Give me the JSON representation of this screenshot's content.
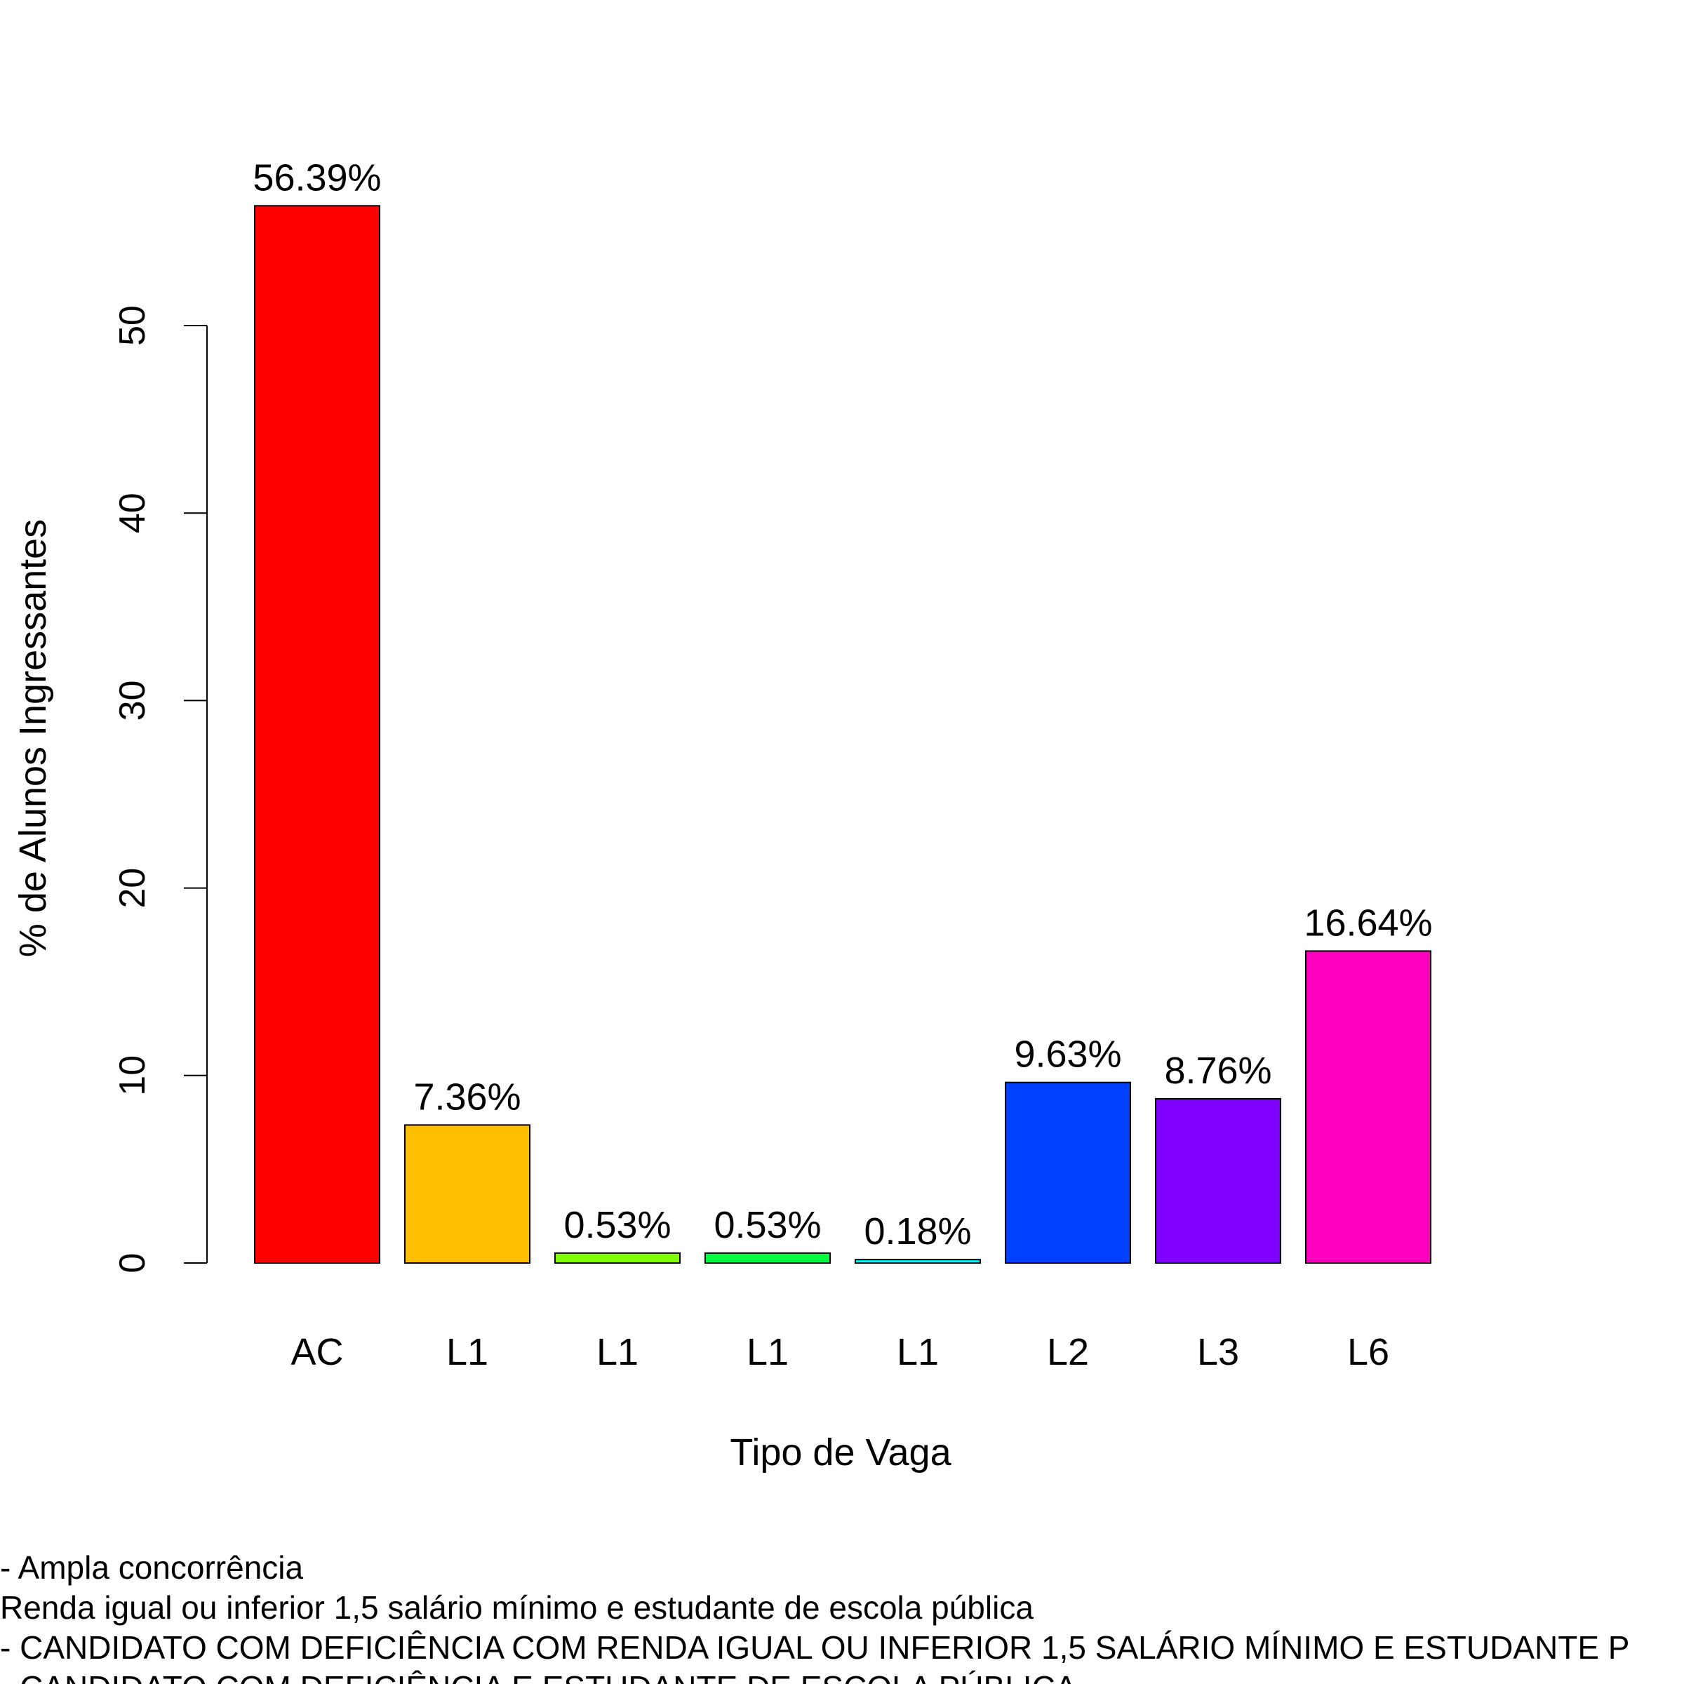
{
  "chart_data": {
    "type": "bar",
    "xlabel": "Tipo de Vaga",
    "ylabel": "% de Alunos Ingressantes",
    "ylim": [
      0,
      60
    ],
    "yticks": [
      0,
      10,
      20,
      30,
      40,
      50
    ],
    "ytick_labels": [
      "0",
      "10",
      "20",
      "30",
      "40",
      "50"
    ],
    "grid": false,
    "categories": [
      "AC",
      "L1",
      "L1",
      "L1",
      "L1",
      "L2",
      "L3",
      "L6"
    ],
    "values": [
      56.39,
      7.36,
      0.53,
      0.53,
      0.18,
      9.63,
      8.76,
      16.64
    ],
    "value_labels": [
      "56.39%",
      "7.36%",
      "0.53%",
      "0.53%",
      "0.18%",
      "9.63%",
      "8.76%",
      "16.64%"
    ],
    "colors": [
      "#FF0000",
      "#FFBF00",
      "#80FF00",
      "#00FF40",
      "#00FFFF",
      "#0040FF",
      "#8000FF",
      "#FF00BF"
    ],
    "legend_lines": [
      "- Ampla concorrência",
      " Renda igual ou inferior 1,5 salário mínimo e estudante de escola pública",
      " - CANDIDATO COM DEFICIÊNCIA COM RENDA IGUAL OU INFERIOR 1,5 SALÁRIO MÍNIMO E ESTUDANTE P",
      " - CANDIDATO COM DEFICIÊNCIA E ESTUDANTE DE ESCOLA PÚBLICA"
    ]
  }
}
